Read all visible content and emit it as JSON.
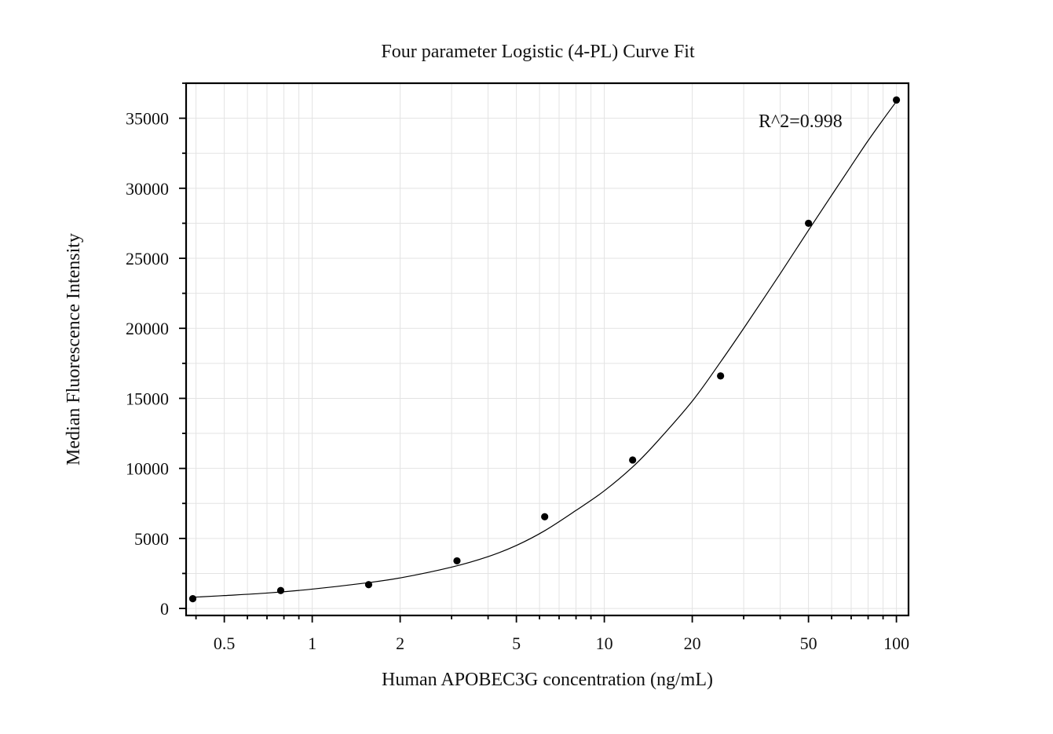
{
  "chart_data": {
    "type": "scatter",
    "title": "Four parameter Logistic (4-PL) Curve Fit",
    "xlabel": "Human APOBEC3G concentration (ng/mL)",
    "ylabel": "Median Fluorescence Intensity",
    "x_scale": "log",
    "xlim": [
      0.37,
      110
    ],
    "ylim": [
      -500,
      37500
    ],
    "x_ticks": [
      0.5,
      1,
      2,
      5,
      10,
      20,
      50,
      100
    ],
    "x_tick_labels": [
      "0.5",
      "1",
      "2",
      "5",
      "10",
      "20",
      "50",
      "100"
    ],
    "y_ticks": [
      0,
      5000,
      10000,
      15000,
      20000,
      25000,
      30000,
      35000
    ],
    "y_tick_labels": [
      "0",
      "5000",
      "10000",
      "15000",
      "20000",
      "25000",
      "30000",
      "35000"
    ],
    "grid": true,
    "annotation": "R^2=0.998",
    "colors": {
      "points": "#000000",
      "curve": "#000000",
      "grid": "#e3e3e3"
    },
    "series": [
      {
        "x": [
          0.39,
          0.78,
          1.56,
          3.13,
          6.25,
          12.5,
          25,
          50,
          100
        ],
        "y": [
          700,
          1280,
          1700,
          3400,
          6550,
          10600,
          16600,
          27500,
          36300
        ]
      }
    ],
    "fit_curve": {
      "model": "4PL",
      "x": [
        0.39,
        0.5,
        0.7,
        1,
        1.5,
        2,
        3,
        4,
        5,
        6.25,
        8,
        10,
        12.5,
        15,
        20,
        25,
        30,
        40,
        50,
        60,
        70,
        80,
        90,
        100
      ],
      "y": [
        800,
        920,
        1100,
        1380,
        1800,
        2180,
        2950,
        3700,
        4500,
        5550,
        7000,
        8400,
        10100,
        11800,
        14800,
        17600,
        20000,
        23900,
        27000,
        29500,
        31600,
        33400,
        34900,
        36200
      ]
    }
  }
}
